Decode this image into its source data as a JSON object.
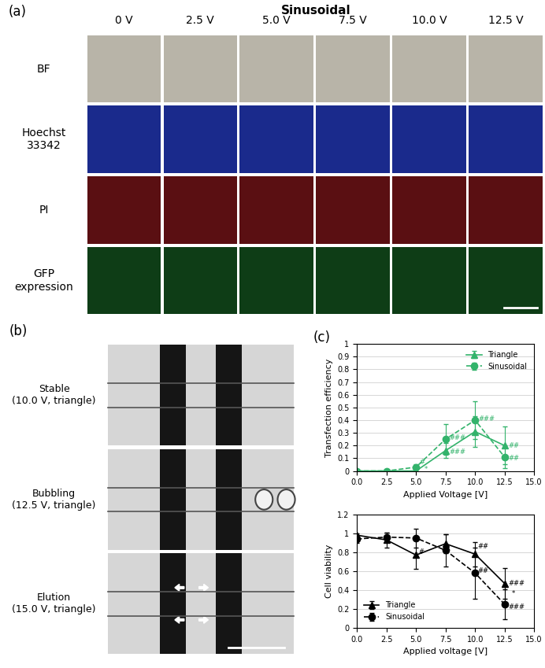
{
  "panel_a": {
    "label": "(a)",
    "title": "Sinusoidal",
    "columns": [
      "0 V",
      "2.5 V",
      "5.0 V",
      "7.5 V",
      "10.0 V",
      "12.5 V"
    ],
    "rows": [
      "BF",
      "Hoechst\n33342",
      "PI",
      "GFP\nexpression"
    ]
  },
  "panel_b": {
    "label": "(b)",
    "rows": [
      "Stable\n(10.0 V, triangle)",
      "Bubbling\n(12.5 V, triangle)",
      "Elution\n(15.0 V, triangle)"
    ]
  },
  "panel_c": {
    "label": "(c)"
  },
  "chart_data": [
    {
      "type": "line",
      "x_label": "Applied Voltage [V]",
      "y_label": "Transfection efficiency",
      "x": [
        0,
        2.5,
        5,
        7.5,
        10,
        12.5
      ],
      "xlim": [
        0,
        15
      ],
      "xticks": [
        {
          "value": 0,
          "label": "0.0"
        },
        {
          "value": 2.5,
          "label": "2.5"
        },
        {
          "value": 5,
          "label": "5.0"
        },
        {
          "value": 7.5,
          "label": "7.5"
        },
        {
          "value": 10,
          "label": "10.0"
        },
        {
          "value": 12.5,
          "label": "12.5"
        },
        {
          "value": 15,
          "label": "15.0"
        }
      ],
      "ylim": [
        0,
        1
      ],
      "yticks": [
        0,
        0.1,
        0.2,
        0.3,
        0.4,
        0.5,
        0.6,
        0.7,
        0.8,
        0.9,
        1
      ],
      "grid": true,
      "legend": "upper right",
      "series": [
        {
          "name": "Triangle",
          "color": "#33b36b",
          "marker": "triangle",
          "line_style": "solid",
          "values": [
            0,
            0,
            0,
            0.16,
            0.31,
            0.2
          ],
          "errors": [
            0,
            0,
            0,
            0.06,
            0.12,
            0.15
          ]
        },
        {
          "name": "Sinusoidal",
          "color": "#33b36b",
          "marker": "circle",
          "line_style": "dashed",
          "values": [
            0,
            0,
            0.03,
            0.25,
            0.4,
            0.11
          ],
          "errors": [
            0,
            0,
            0.02,
            0.12,
            0.15,
            0.09
          ]
        }
      ],
      "annotations": [
        {
          "text": "#",
          "x": 5.3,
          "y": 0.07
        },
        {
          "text": "*",
          "x": 5.7,
          "y": 0.01
        },
        {
          "text": "###",
          "x": 7.8,
          "y": 0.26
        },
        {
          "text": "###",
          "x": 7.8,
          "y": 0.15
        },
        {
          "text": "###",
          "x": 10.3,
          "y": 0.41
        },
        {
          "text": "##",
          "x": 12.8,
          "y": 0.2
        },
        {
          "text": "##",
          "x": 12.8,
          "y": 0.1
        }
      ]
    },
    {
      "type": "line",
      "x_label": "Applied voltage [V]",
      "y_label": "Cell viability",
      "x": [
        0,
        2.5,
        5,
        7.5,
        10,
        12.5
      ],
      "xlim": [
        0,
        15
      ],
      "xticks": [
        {
          "value": 0,
          "label": "0.0"
        },
        {
          "value": 2.5,
          "label": "2.5"
        },
        {
          "value": 5,
          "label": "5.0"
        },
        {
          "value": 7.5,
          "label": "7.5"
        },
        {
          "value": 10,
          "label": "10.0"
        },
        {
          "value": 12.5,
          "label": "12.5"
        },
        {
          "value": 15,
          "label": "15.0"
        }
      ],
      "ylim": [
        0,
        1.2
      ],
      "yticks": [
        0,
        0.2,
        0.4,
        0.6,
        0.8,
        1,
        1.2
      ],
      "grid": true,
      "legend": "lower left",
      "series": [
        {
          "name": "Triangle",
          "color": "#000000",
          "marker": "triangle",
          "line_style": "solid",
          "values": [
            0.98,
            0.93,
            0.77,
            0.89,
            0.78,
            0.47
          ],
          "errors": [
            0.02,
            0.08,
            0.15,
            0.1,
            0.13,
            0.16
          ]
        },
        {
          "name": "Sinusoidal",
          "color": "#000000",
          "marker": "circle",
          "line_style": "dashed",
          "values": [
            0.94,
            0.96,
            0.95,
            0.82,
            0.58,
            0.25
          ],
          "errors": [
            0.04,
            0.05,
            0.1,
            0.17,
            0.27,
            0.16
          ]
        }
      ],
      "annotations": [
        {
          "text": "#",
          "x": 5.2,
          "y": 0.8
        },
        {
          "text": "##",
          "x": 10.2,
          "y": 0.86
        },
        {
          "text": "##",
          "x": 10.2,
          "y": 0.6
        },
        {
          "text": "###",
          "x": 12.8,
          "y": 0.47
        },
        {
          "text": "###",
          "x": 12.8,
          "y": 0.22
        },
        {
          "text": "*",
          "x": 13.1,
          "y": 0.36
        }
      ]
    }
  ]
}
